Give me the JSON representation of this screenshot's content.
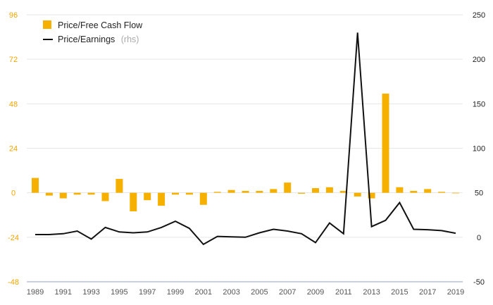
{
  "colors": {
    "bar": "#f5b000",
    "line": "#111111",
    "left_axis_text": "#f0a500",
    "grid": "#e6e6e6"
  },
  "chart_data": {
    "type": "bar+line",
    "x": [
      1989,
      1990,
      1991,
      1992,
      1993,
      1994,
      1995,
      1996,
      1997,
      1998,
      1999,
      2000,
      2001,
      2002,
      2003,
      2004,
      2005,
      2006,
      2007,
      2008,
      2009,
      2010,
      2011,
      2012,
      2013,
      2014,
      2015,
      2016,
      2017,
      2018,
      2019
    ],
    "x_tick_labels": [
      "1989",
      "1991",
      "1993",
      "1995",
      "1997",
      "1999",
      "2001",
      "2003",
      "2005",
      "2007",
      "2009",
      "2011",
      "2013",
      "2015",
      "2017",
      "2019"
    ],
    "left_axis": {
      "ylim": [
        -48,
        96
      ],
      "ticks": [
        "96",
        "72",
        "48",
        "24",
        "0",
        "-24",
        "-48"
      ]
    },
    "right_axis": {
      "ylim": [
        -50,
        250
      ],
      "ticks": [
        "250",
        "200",
        "150",
        "100",
        "50",
        "0",
        "-50"
      ]
    },
    "grid": "horizontal",
    "legend_position": "top-left",
    "series": [
      {
        "name": "Price/Free Cash Flow",
        "type": "bar",
        "axis": "left",
        "values": [
          8,
          -1.5,
          -3,
          -1,
          -1,
          -4.5,
          7.5,
          -10,
          -4,
          -7,
          -1,
          -1,
          -6.5,
          0.5,
          1.5,
          1,
          1,
          2,
          5.5,
          -0.5,
          2.5,
          3,
          1,
          -2,
          -3,
          53.5,
          3,
          1,
          2,
          0.5,
          -0.3
        ]
      },
      {
        "name": "Price/Earnings",
        "name_suffix": "(rhs)",
        "type": "line",
        "axis": "right",
        "values": [
          3,
          3,
          4,
          7,
          -2,
          11,
          6,
          5,
          6,
          11,
          18,
          10,
          -8,
          1,
          0.5,
          0,
          5,
          9,
          7,
          4,
          -6,
          16,
          4,
          230,
          12,
          19,
          39,
          9,
          8.5,
          7.5,
          4.5
        ]
      }
    ]
  }
}
